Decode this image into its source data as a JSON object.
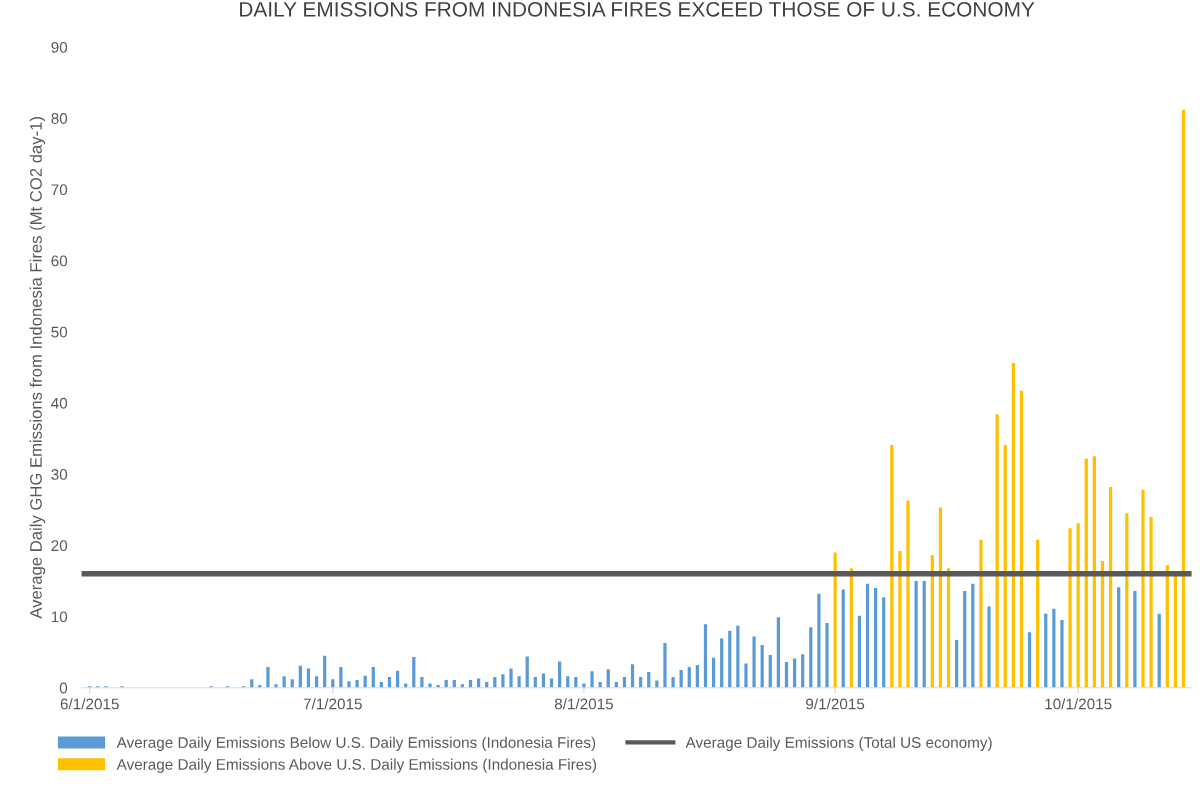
{
  "chart_data": {
    "type": "bar",
    "title": "DAILY EMISSIONS FROM INDONESIA FIRES EXCEED THOSE OF U.S. ECONOMY",
    "ylabel": "Average Daily GHG Emissions from Indonesia Fires (Mt CO2 day-1)",
    "series": [
      {
        "name": "Average Daily Emissions Below U.S. Daily Emissions (Indonesia Fires)",
        "color": "#5b9bd5",
        "x": [
          "2015-06-01",
          "2015-06-02",
          "2015-06-03",
          "2015-06-05",
          "2015-06-16",
          "2015-06-18",
          "2015-06-20",
          "2015-06-21",
          "2015-06-22",
          "2015-06-23",
          "2015-06-24",
          "2015-06-25",
          "2015-06-26",
          "2015-06-27",
          "2015-06-28",
          "2015-06-29",
          "2015-06-30",
          "2015-07-01",
          "2015-07-02",
          "2015-07-03",
          "2015-07-04",
          "2015-07-05",
          "2015-07-06",
          "2015-07-07",
          "2015-07-08",
          "2015-07-09",
          "2015-07-10",
          "2015-07-11",
          "2015-07-12",
          "2015-07-13",
          "2015-07-14",
          "2015-07-15",
          "2015-07-16",
          "2015-07-17",
          "2015-07-18",
          "2015-07-19",
          "2015-07-20",
          "2015-07-21",
          "2015-07-22",
          "2015-07-23",
          "2015-07-24",
          "2015-07-25",
          "2015-07-26",
          "2015-07-27",
          "2015-07-28",
          "2015-07-29",
          "2015-07-30",
          "2015-07-31",
          "2015-08-01",
          "2015-08-02",
          "2015-08-03",
          "2015-08-04",
          "2015-08-05",
          "2015-08-06",
          "2015-08-07",
          "2015-08-08",
          "2015-08-09",
          "2015-08-10",
          "2015-08-11",
          "2015-08-12",
          "2015-08-13",
          "2015-08-14",
          "2015-08-15",
          "2015-08-16",
          "2015-08-17",
          "2015-08-18",
          "2015-08-19",
          "2015-08-20",
          "2015-08-21",
          "2015-08-22",
          "2015-08-23",
          "2015-08-24",
          "2015-08-25",
          "2015-08-26",
          "2015-08-27",
          "2015-08-28",
          "2015-08-29",
          "2015-08-30",
          "2015-08-31",
          "2015-09-02",
          "2015-09-04",
          "2015-09-05",
          "2015-09-06",
          "2015-09-07",
          "2015-09-11",
          "2015-09-12",
          "2015-09-16",
          "2015-09-17",
          "2015-09-18",
          "2015-09-20",
          "2015-09-25",
          "2015-09-27",
          "2015-09-28",
          "2015-09-29",
          "2015-10-06",
          "2015-10-08",
          "2015-10-11"
        ],
        "values": [
          0.2,
          0.2,
          0.2,
          0.2,
          0.2,
          0.2,
          0.2,
          1.2,
          0.4,
          2.9,
          0.5,
          1.6,
          1.2,
          3.1,
          2.7,
          1.6,
          4.5,
          1.2,
          2.9,
          0.9,
          1.1,
          1.7,
          2.9,
          0.8,
          1.5,
          2.4,
          0.6,
          4.3,
          1.5,
          0.6,
          0.4,
          1.1,
          1.1,
          0.5,
          1.1,
          1.3,
          0.8,
          1.5,
          1.9,
          2.7,
          1.6,
          4.4,
          1.5,
          2.0,
          1.3,
          3.7,
          1.6,
          1.5,
          0.6,
          2.3,
          0.8,
          2.6,
          0.8,
          1.5,
          3.3,
          1.5,
          2.2,
          1.0,
          6.3,
          1.5,
          2.5,
          2.9,
          3.2,
          8.9,
          4.2,
          6.9,
          8.0,
          8.7,
          3.4,
          7.2,
          6.0,
          4.6,
          9.9,
          3.6,
          4.1,
          4.7,
          8.5,
          13.2,
          9.1,
          13.8,
          10.1,
          14.6,
          14.0,
          12.7,
          15.0,
          15.0,
          6.7,
          13.6,
          14.6,
          11.4,
          7.8,
          10.4,
          11.1,
          9.5,
          14.1,
          13.6,
          10.4
        ]
      },
      {
        "name": "Average Daily Emissions Above U.S. Daily Emissions (Indonesia Fires)",
        "color": "#ffc000",
        "x": [
          "2015-09-01",
          "2015-09-03",
          "2015-09-08",
          "2015-09-09",
          "2015-09-10",
          "2015-09-13",
          "2015-09-14",
          "2015-09-15",
          "2015-09-19",
          "2015-09-21",
          "2015-09-22",
          "2015-09-23",
          "2015-09-24",
          "2015-09-26",
          "2015-09-30",
          "2015-10-01",
          "2015-10-02",
          "2015-10-03",
          "2015-10-04",
          "2015-10-05",
          "2015-10-07",
          "2015-10-09",
          "2015-10-10",
          "2015-10-12",
          "2015-10-13",
          "2015-10-14"
        ],
        "values": [
          19.0,
          16.8,
          34.1,
          19.2,
          26.3,
          18.6,
          25.3,
          16.8,
          20.8,
          38.4,
          34.1,
          45.6,
          41.7,
          20.8,
          22.4,
          23.1,
          32.2,
          32.5,
          17.8,
          28.2,
          24.5,
          27.8,
          24.0,
          17.2,
          15.9,
          81.2
        ]
      }
    ],
    "ref_lines": [
      {
        "axis": "y",
        "value": 16.0,
        "label": "Average Daily Emissions (Total US economy)",
        "color": "#595959",
        "line_style": "solid"
      }
    ],
    "xlim": [
      "2015-05-31",
      "2015-10-15"
    ],
    "xticks": [
      {
        "value": "2015-06-01",
        "label": "6/1/2015"
      },
      {
        "value": "2015-07-01",
        "label": "7/1/2015"
      },
      {
        "value": "2015-08-01",
        "label": "8/1/2015"
      },
      {
        "value": "2015-09-01",
        "label": "9/1/2015"
      },
      {
        "value": "2015-10-01",
        "label": "10/1/2015"
      }
    ],
    "ylim": [
      0,
      90
    ],
    "yticks": [
      0,
      10,
      20,
      30,
      40,
      50,
      60,
      70,
      80,
      90
    ],
    "grid": false,
    "legend": "bottom"
  }
}
